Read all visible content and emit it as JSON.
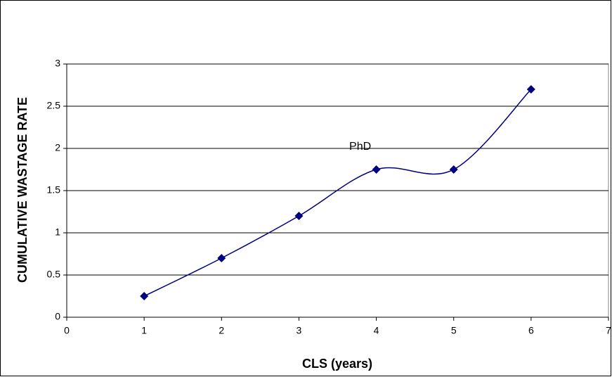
{
  "chart_data": {
    "type": "line",
    "smooth": true,
    "grid": true,
    "ylabel": "CUMULATIVE WASTAGE RATE",
    "xlabel": "CLS (years)",
    "annotation": "PhD",
    "x": [
      1,
      2,
      3,
      4,
      5,
      6
    ],
    "series": [
      {
        "color": "#000080",
        "values": [
          0.25,
          0.7,
          1.2,
          1.75,
          1.75,
          2.7
        ]
      }
    ],
    "xlim": [
      0,
      7
    ],
    "xticks": [
      0,
      1,
      2,
      3,
      4,
      5,
      6,
      7
    ],
    "ylim": [
      0,
      3
    ],
    "yticks": [
      0,
      0.5,
      1,
      1.5,
      2,
      2.5,
      3
    ]
  }
}
